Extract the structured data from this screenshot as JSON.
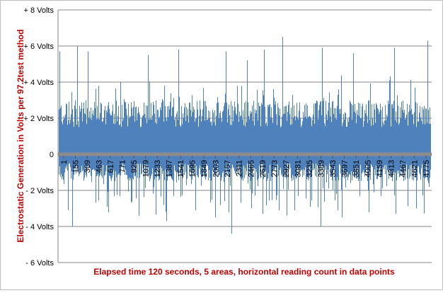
{
  "chart_data": {
    "type": "bar",
    "title": "",
    "xlabel": "Elapsed time 120 seconds, 5 areas, horizontal reading count in data points",
    "ylabel": "Electrostatic Generation in Volts per 97.2test method",
    "ylim": [
      -6,
      8
    ],
    "y_ticks": [
      {
        "value": 8,
        "label": "+ 8 Volts"
      },
      {
        "value": 6,
        "label": "+ 6 Volts"
      },
      {
        "value": 4,
        "label": "+ 4 Volts"
      },
      {
        "value": 2,
        "label": "+ 2 Volts"
      },
      {
        "value": 0,
        "label": "0"
      },
      {
        "value": -2,
        "label": "- 2 Volts"
      },
      {
        "value": -4,
        "label": "- 4 Volts"
      },
      {
        "value": -6,
        "label": "- 6 Volts"
      }
    ],
    "x_range": [
      1,
      4900
    ],
    "x_tick_labels": [
      "1",
      "155",
      "309",
      "463",
      "617",
      "771",
      "925",
      "1079",
      "1233",
      "1387",
      "1541",
      "1695",
      "1849",
      "2003",
      "2157",
      "2311",
      "2465",
      "2619",
      "2773",
      "2927",
      "3081",
      "3235",
      "3389",
      "3543",
      "3697",
      "3851",
      "4005",
      "4159",
      "4313",
      "4467",
      "4621",
      "4775"
    ],
    "grid": "horizontal",
    "legend": "none",
    "series_color": "#4f81bd",
    "zero_line_color": "#8c8c8c",
    "num_points": 4900,
    "typical_positive_range": [
      1.5,
      3.0
    ],
    "typical_negative_range": [
      -0.5,
      -2.5
    ],
    "positive_peaks": [
      {
        "x": 20,
        "y": 5.7
      },
      {
        "x": 250,
        "y": 6.0
      },
      {
        "x": 390,
        "y": 5.7
      },
      {
        "x": 1180,
        "y": 5.5
      },
      {
        "x": 1580,
        "y": 5.8
      },
      {
        "x": 2200,
        "y": 5.7
      },
      {
        "x": 2480,
        "y": 5.2
      },
      {
        "x": 2700,
        "y": 5.8
      },
      {
        "x": 2940,
        "y": 6.5
      },
      {
        "x": 3460,
        "y": 5.9
      },
      {
        "x": 3870,
        "y": 5.6
      },
      {
        "x": 4410,
        "y": 5.9
      },
      {
        "x": 4840,
        "y": 6.3
      }
    ],
    "negative_peaks": [
      {
        "x": 130,
        "y": -3.1
      },
      {
        "x": 190,
        "y": -4.0
      },
      {
        "x": 660,
        "y": -3.2
      },
      {
        "x": 1060,
        "y": -3.4
      },
      {
        "x": 1420,
        "y": -3.7
      },
      {
        "x": 1800,
        "y": -3.1
      },
      {
        "x": 2060,
        "y": -3.5
      },
      {
        "x": 2270,
        "y": -4.4
      },
      {
        "x": 2680,
        "y": -3.3
      },
      {
        "x": 3100,
        "y": -3.1
      },
      {
        "x": 3440,
        "y": -4.0
      },
      {
        "x": 3720,
        "y": -3.5
      },
      {
        "x": 4070,
        "y": -3.2
      },
      {
        "x": 4430,
        "y": -3.3
      },
      {
        "x": 4700,
        "y": -3.0
      }
    ]
  }
}
